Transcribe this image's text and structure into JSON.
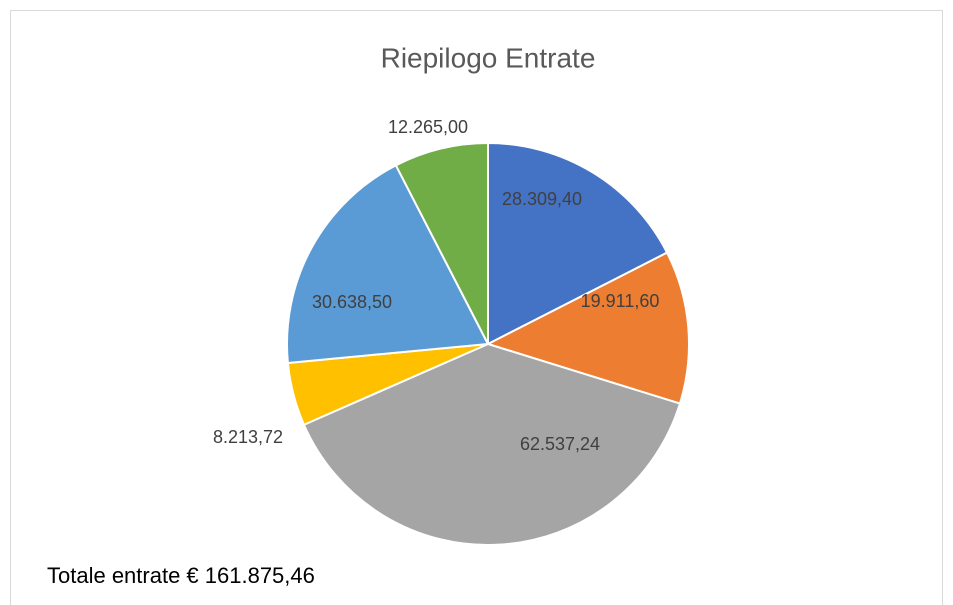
{
  "chart_data": {
    "type": "pie",
    "title": "Riepilogo Entrate",
    "values": [
      28309.4,
      19911.6,
      62537.24,
      8213.72,
      30638.5,
      12265.0
    ],
    "value_labels": [
      "28.309,40",
      "19.911,60",
      "62.537,24",
      "8.213,72",
      "30.638,50",
      "12.265,00"
    ],
    "colors": [
      "#4472c4",
      "#ed7d31",
      "#a5a5a5",
      "#ffc000",
      "#5b9bd5",
      "#70ad47"
    ],
    "annotation": "Totale entrate € 161.875,46"
  }
}
